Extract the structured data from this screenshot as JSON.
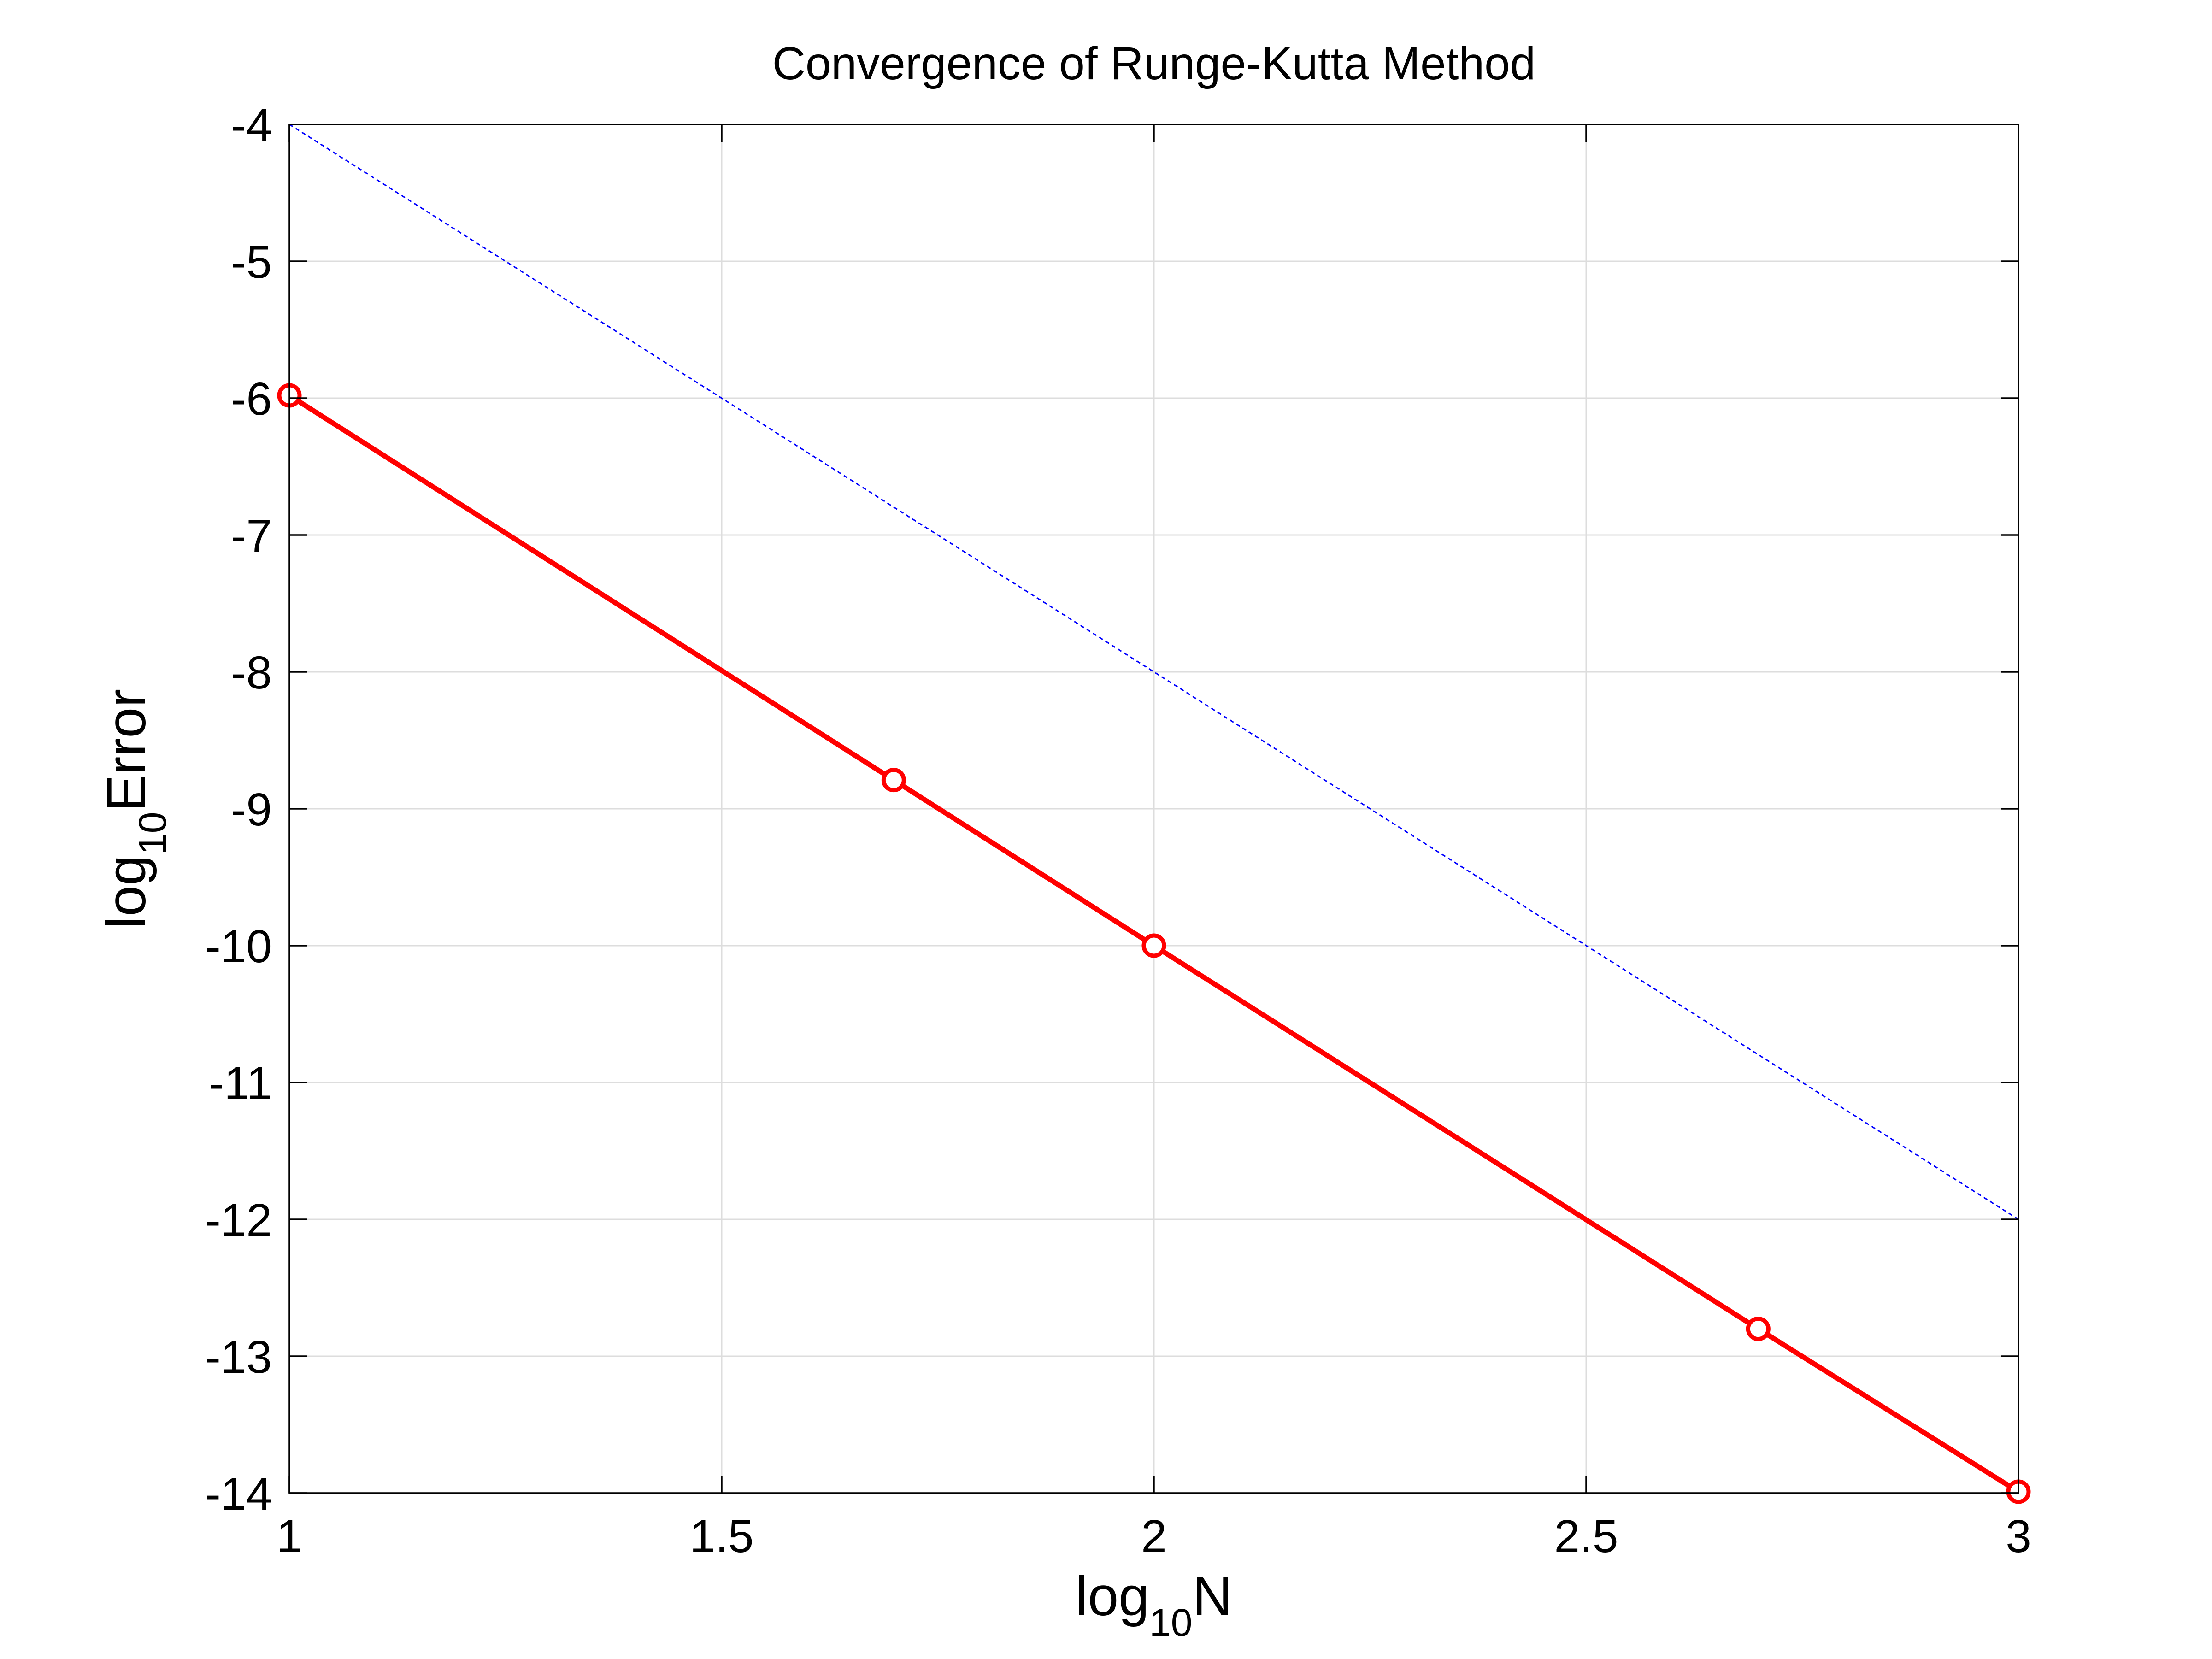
{
  "chart_data": {
    "type": "line",
    "title": "Convergence of Runge-Kutta Method",
    "xlabel": {
      "base": "log",
      "subscript": "10",
      "text": "N"
    },
    "ylabel": {
      "base": "log",
      "subscript": "10",
      "text": "Error"
    },
    "xlim": [
      1,
      3
    ],
    "ylim": [
      -14,
      -4
    ],
    "x_ticks": [
      1,
      1.5,
      2,
      2.5,
      3
    ],
    "x_tick_labels": [
      "1",
      "1.5",
      "2",
      "2.5",
      "3"
    ],
    "y_ticks": [
      -14,
      -13,
      -12,
      -11,
      -10,
      -9,
      -8,
      -7,
      -6,
      -5,
      -4
    ],
    "y_tick_labels": [
      "-14",
      "-13",
      "-12",
      "-11",
      "-10",
      "-9",
      "-8",
      "-7",
      "-6",
      "-5",
      "-4"
    ],
    "grid": true,
    "series": [
      {
        "style": "solid-with-circle-markers",
        "color": "#ff0000",
        "x": [
          1,
          1.699,
          2,
          2.699,
          3
        ],
        "y": [
          -5.98,
          -8.79,
          -10.0,
          -12.8,
          -13.99
        ]
      },
      {
        "style": "dotted-reference",
        "color": "#0000ff",
        "x": [
          1,
          3
        ],
        "y": [
          -4,
          -12
        ]
      }
    ]
  }
}
